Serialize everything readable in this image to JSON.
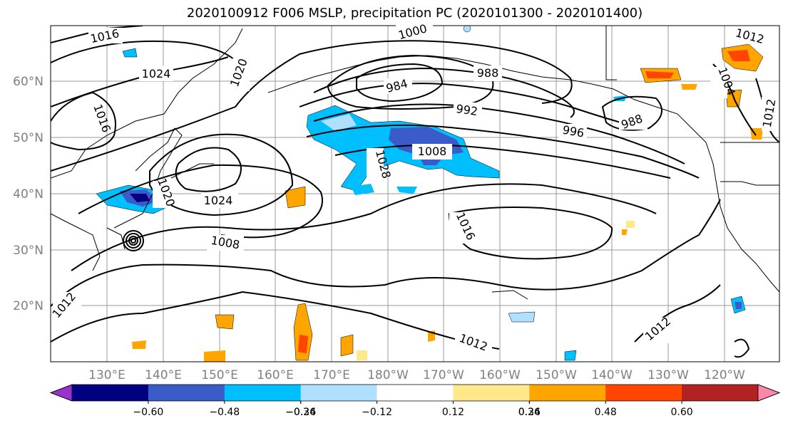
{
  "title": "2020100912 F006 MSLP, precipitation PC (2020101300 - 2020101400)",
  "lat_labels": [
    "60°N",
    "50°N",
    "40°N",
    "30°N",
    "20°N"
  ],
  "lon_labels": [
    "130°E",
    "140°E",
    "150°E",
    "160°E",
    "170°E",
    "180°W",
    "170°W",
    "160°W",
    "150°W",
    "140°W",
    "130°W",
    "120°W"
  ],
  "isobar_labels": [
    "1016",
    "1024",
    "1020",
    "1000",
    "984",
    "988",
    "992",
    "996",
    "988",
    "1012",
    "1004",
    "1016",
    "1012",
    "1008",
    "1028",
    "1024",
    "1020",
    "1016",
    "1008",
    "1012",
    "1012",
    "1012"
  ],
  "colorbar": {
    "colors": [
      "#9932CC",
      "#000080",
      "#3A5BC8",
      "#00BFFF",
      "#B0E0FF",
      "#FFFFFF",
      "#FFE88A",
      "#FFA500",
      "#FF4500",
      "#B22222",
      "#FF88AA"
    ],
    "tick_labels": [
      "−0.60",
      "−0.48",
      "−0.36",
      "−0.24",
      "−0.12",
      "0.12",
      "0.24",
      "0.36",
      "0.48",
      "0.60"
    ]
  },
  "colors": {
    "gridlines": "#999999",
    "axis_label": "#808080",
    "isobar": "#000000"
  }
}
